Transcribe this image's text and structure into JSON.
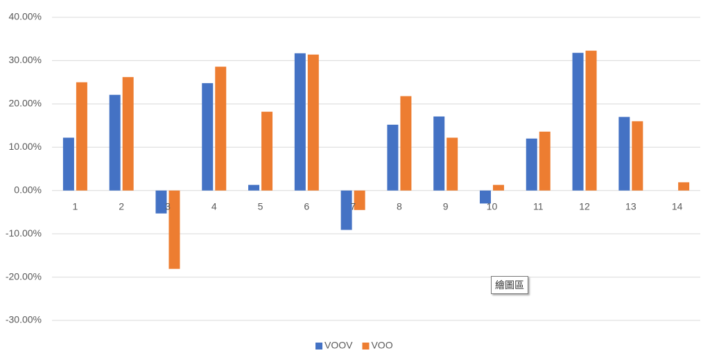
{
  "chart_data": {
    "type": "bar",
    "categories": [
      "1",
      "2",
      "3",
      "4",
      "5",
      "6",
      "7",
      "8",
      "9",
      "10",
      "11",
      "12",
      "13",
      "14"
    ],
    "series": [
      {
        "name": "VOOV",
        "color": "#4472c4",
        "values": [
          12.2,
          22.1,
          -5.3,
          24.8,
          1.3,
          31.7,
          -9.1,
          15.2,
          17.1,
          -3.0,
          12.0,
          31.8,
          17.0,
          null
        ]
      },
      {
        "name": "VOO",
        "color": "#ed7d31",
        "values": [
          25.0,
          26.2,
          -18.1,
          28.6,
          18.2,
          31.4,
          -4.5,
          21.8,
          12.2,
          1.3,
          13.6,
          32.3,
          16.0,
          1.9
        ]
      }
    ],
    "ylim": [
      -30,
      40
    ],
    "yticks": [
      {
        "value": -30,
        "label": "-30.00%"
      },
      {
        "value": -20,
        "label": "-20.00%"
      },
      {
        "value": -10,
        "label": "-10.00%"
      },
      {
        "value": 0,
        "label": "0.00%"
      },
      {
        "value": 10,
        "label": "10.00%"
      },
      {
        "value": 20,
        "label": "20.00%"
      },
      {
        "value": 30,
        "label": "30.00%"
      },
      {
        "value": 40,
        "label": "40.00%"
      }
    ],
    "grid": true,
    "legend": "bottom"
  },
  "tooltip": "繪圖區"
}
